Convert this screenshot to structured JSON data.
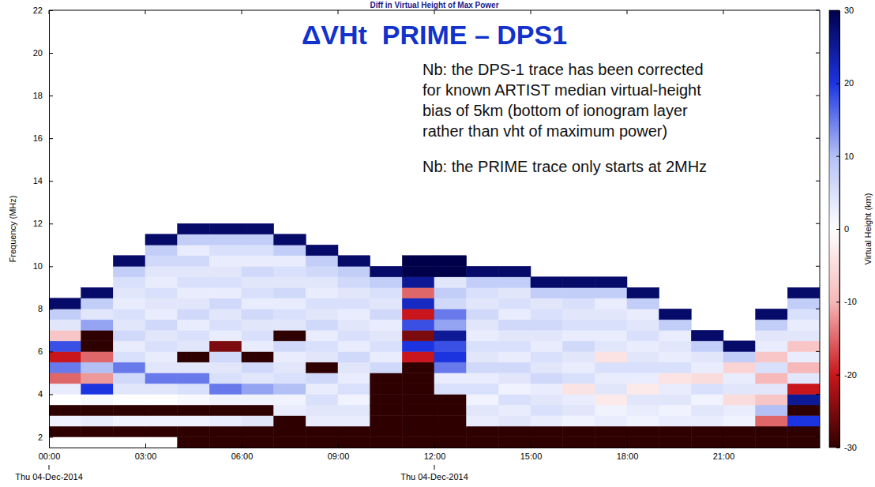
{
  "chart_data": {
    "type": "heatmap",
    "title": "Diff in Virtual Height of Max Power",
    "subtitle": "ΔVHt  PRIME – DPS1",
    "annotations": [
      [
        "Nb: the DPS-1 trace has been corrected",
        "for known ARTIST median virtual-height",
        "bias of 5km (bottom of ionogram layer",
        "rather than vht of maximum power)"
      ],
      [
        "Nb: the PRIME trace only starts at 2MHz"
      ]
    ],
    "y_label": "Frequency (MHz)",
    "xlim": [
      0,
      24
    ],
    "xticks": [
      {
        "value": 0,
        "label": "00:00"
      },
      {
        "value": 3,
        "label": "03:00"
      },
      {
        "value": 6,
        "label": "06:00"
      },
      {
        "value": 9,
        "label": "09:00"
      },
      {
        "value": 12,
        "label": "12:00"
      },
      {
        "value": 15,
        "label": "15:00"
      },
      {
        "value": 18,
        "label": "18:00"
      },
      {
        "value": 21,
        "label": "21:00"
      }
    ],
    "x_date_ticks": [
      {
        "value": 0,
        "label": "Thu 04-Dec-2014"
      },
      {
        "value": 12,
        "label": "Thu 04-Dec-2014"
      }
    ],
    "ylim": [
      1.5,
      22
    ],
    "yticks": [
      2,
      4,
      6,
      8,
      10,
      12,
      14,
      16,
      18,
      20,
      22
    ],
    "x_bins": [
      0,
      1,
      2,
      3,
      4,
      5,
      6,
      7,
      8,
      9,
      10,
      11,
      12,
      13,
      14,
      15,
      16,
      17,
      18,
      19,
      20,
      21,
      22,
      23,
      24
    ],
    "y_bins": [
      1.5,
      2,
      2.5,
      3,
      3.5,
      4,
      4.5,
      5,
      5.5,
      6,
      6.5,
      7,
      7.5,
      8,
      8.5,
      9,
      9.5,
      10,
      10.5,
      11,
      11.5,
      12
    ],
    "values": [
      [
        null,
        null,
        null,
        null,
        -30,
        -30,
        -30,
        -30,
        -30,
        -30,
        -30,
        -30,
        -30,
        -30,
        -30,
        -30,
        -30,
        -30,
        -30,
        -30,
        -30,
        -30,
        -30,
        -30
      ],
      [
        -30,
        -30,
        -30,
        -30,
        -30,
        -30,
        -30,
        -30,
        -30,
        -30,
        -30,
        -30,
        -30,
        -30,
        -30,
        -30,
        -30,
        -30,
        -30,
        -30,
        -30,
        -30,
        -30,
        -30
      ],
      [
        2,
        3,
        2,
        2,
        2,
        3,
        4,
        -30,
        3,
        3,
        -30,
        -30,
        -30,
        3,
        4,
        3,
        2,
        3,
        2,
        3,
        3,
        2,
        -15,
        20
      ],
      [
        -30,
        -30,
        -30,
        -30,
        -30,
        -30,
        -30,
        3,
        4,
        4,
        -30,
        -30,
        -30,
        4,
        3,
        5,
        4,
        2,
        3,
        2,
        4,
        3,
        10,
        -30
      ],
      [
        0,
        1,
        0,
        0,
        1,
        2,
        2,
        2,
        5,
        2,
        -30,
        -30,
        -30,
        2,
        5,
        4,
        3,
        -3,
        4,
        4,
        2,
        -5,
        -8,
        25
      ],
      [
        3,
        20,
        4,
        4,
        5,
        15,
        12,
        10,
        3,
        5,
        -30,
        -30,
        5,
        5,
        2,
        3,
        -4,
        4,
        -3,
        3,
        5,
        4,
        4,
        -20
      ],
      [
        -15,
        -12,
        6,
        15,
        15,
        5,
        4,
        5,
        6,
        3,
        -30,
        -30,
        3,
        3,
        4,
        6,
        5,
        3,
        3,
        -4,
        -5,
        3,
        -10,
        4
      ],
      [
        15,
        10,
        15,
        4,
        4,
        4,
        6,
        4,
        -30,
        4,
        6,
        -30,
        15,
        6,
        6,
        4,
        3,
        5,
        5,
        5,
        3,
        -6,
        5,
        -10
      ],
      [
        -20,
        -15,
        5,
        3,
        -30,
        6,
        -30,
        3,
        4,
        6,
        3,
        -20,
        20,
        4,
        3,
        5,
        4,
        -4,
        4,
        3,
        4,
        8,
        -8,
        3
      ],
      [
        18,
        -30,
        3,
        5,
        4,
        -25,
        3,
        6,
        5,
        3,
        5,
        20,
        18,
        5,
        5,
        3,
        6,
        4,
        3,
        4,
        8,
        28,
        3,
        -8
      ],
      [
        -8,
        -30,
        6,
        4,
        5,
        3,
        5,
        -30,
        3,
        5,
        4,
        -25,
        25,
        3,
        4,
        4,
        3,
        3,
        5,
        3,
        28,
        null,
        4,
        4
      ],
      [
        4,
        12,
        4,
        6,
        3,
        5,
        4,
        4,
        6,
        4,
        3,
        18,
        12,
        4,
        6,
        6,
        5,
        5,
        4,
        8,
        null,
        null,
        8,
        3
      ],
      [
        8,
        4,
        5,
        3,
        6,
        4,
        6,
        5,
        4,
        3,
        6,
        -20,
        15,
        6,
        3,
        5,
        4,
        4,
        3,
        28,
        null,
        null,
        28,
        5
      ],
      [
        28,
        8,
        3,
        4,
        4,
        6,
        3,
        3,
        5,
        5,
        4,
        22,
        6,
        4,
        5,
        4,
        5,
        3,
        8,
        null,
        null,
        null,
        null,
        8
      ],
      [
        null,
        28,
        4,
        5,
        3,
        3,
        5,
        6,
        3,
        4,
        5,
        -15,
        8,
        5,
        4,
        8,
        8,
        8,
        28,
        null,
        null,
        null,
        null,
        28
      ],
      [
        null,
        null,
        5,
        3,
        5,
        5,
        4,
        4,
        4,
        6,
        8,
        25,
        4,
        8,
        8,
        28,
        28,
        28,
        null,
        null,
        null,
        null,
        null,
        null
      ],
      [
        null,
        null,
        8,
        4,
        4,
        4,
        6,
        5,
        6,
        8,
        28,
        30,
        30,
        28,
        28,
        null,
        null,
        null,
        null,
        null,
        null,
        null,
        null,
        null
      ],
      [
        null,
        null,
        28,
        6,
        6,
        3,
        3,
        3,
        8,
        28,
        null,
        30,
        30,
        null,
        null,
        null,
        null,
        null,
        null,
        null,
        null,
        null,
        null,
        null
      ],
      [
        null,
        null,
        null,
        8,
        3,
        5,
        5,
        8,
        28,
        null,
        null,
        null,
        null,
        null,
        null,
        null,
        null,
        null,
        null,
        null,
        null,
        null,
        null,
        null
      ],
      [
        null,
        null,
        null,
        28,
        8,
        8,
        8,
        28,
        null,
        null,
        null,
        null,
        null,
        null,
        null,
        null,
        null,
        null,
        null,
        null,
        null,
        null,
        null,
        null
      ],
      [
        null,
        null,
        null,
        null,
        28,
        28,
        28,
        null,
        null,
        null,
        null,
        null,
        null,
        null,
        null,
        null,
        null,
        null,
        null,
        null,
        null,
        null,
        null,
        null
      ]
    ],
    "colorbar": {
      "label": "Virtual Height (km)",
      "range": [
        -30,
        30
      ],
      "ticks": [
        -30,
        -20,
        -10,
        0,
        10,
        20,
        30
      ]
    }
  }
}
